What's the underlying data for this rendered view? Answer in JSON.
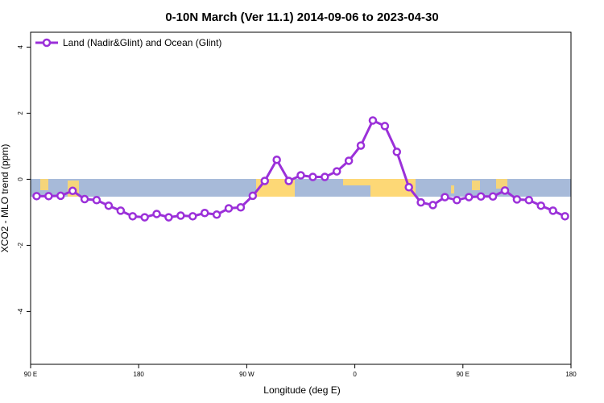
{
  "chart_data": {
    "type": "line",
    "title": "0-10N March (Ver 11.1)   2014-09-06 to 2023-04-30",
    "xlabel": "Longitude (deg E)",
    "ylabel": "XCO2 - MLO trend (ppm)",
    "x": [
      95,
      105,
      115,
      125,
      135,
      145,
      155,
      165,
      175,
      185,
      195,
      205,
      215,
      225,
      235,
      245,
      255,
      265,
      275,
      285,
      295,
      305,
      315,
      325,
      335,
      345,
      355,
      365,
      375,
      385,
      395,
      405,
      415,
      425,
      435,
      445,
      455,
      465,
      475,
      485,
      495,
      505,
      515,
      525,
      535
    ],
    "series": [
      {
        "name": "Land (Nadir&Glint) and Ocean (Glint)",
        "color": "#9b30d9",
        "values": [
          -0.51,
          -0.51,
          -0.5,
          -0.35,
          -0.6,
          -0.63,
          -0.8,
          -0.95,
          -1.12,
          -1.15,
          -1.05,
          -1.15,
          -1.1,
          -1.12,
          -1.02,
          -1.07,
          -0.88,
          -0.85,
          -0.5,
          -0.05,
          0.59,
          -0.05,
          0.12,
          0.07,
          0.07,
          0.24,
          0.56,
          1.02,
          1.78,
          1.61,
          0.83,
          -0.24,
          -0.7,
          -0.78,
          -0.54,
          -0.63,
          -0.54,
          -0.52,
          -0.52,
          -0.34,
          -0.61,
          -0.63,
          -0.8,
          -0.95,
          -1.12
        ]
      }
    ],
    "xlim": [
      90,
      540
    ],
    "xticks": [
      {
        "value": 90,
        "label": "90 E"
      },
      180,
      {
        "value": 270,
        "label": "90 W"
      },
      {
        "value": 360,
        "label": "0"
      },
      {
        "value": 450,
        "label": "90 E"
      },
      {
        "value": 540,
        "label": "180"
      }
    ],
    "ylim": [
      -5.6,
      4.45
    ],
    "yticks": [
      -4,
      -2,
      0,
      2,
      4
    ],
    "legend": "top-left"
  }
}
